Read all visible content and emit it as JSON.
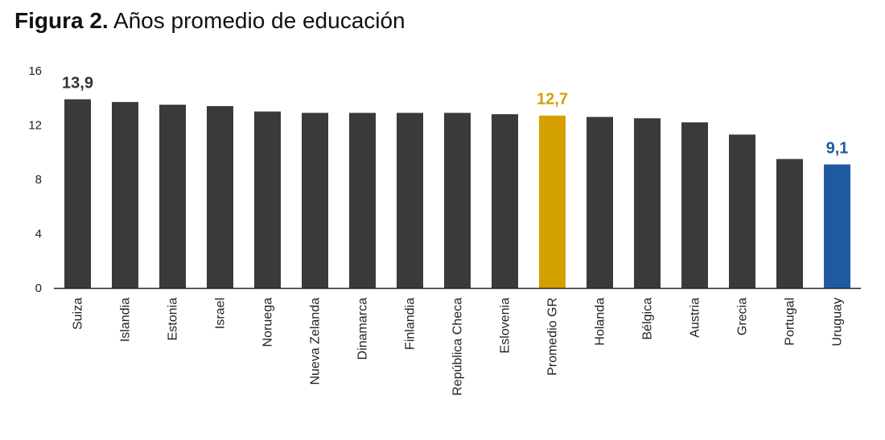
{
  "figure": {
    "number_label": "Figura 2.",
    "title_text": "Años promedio de educación"
  },
  "chart_data": {
    "type": "bar",
    "title": "Figura 2. Años promedio de educación",
    "categories": [
      "Suiza",
      "Islandia",
      "Estonia",
      "Israel",
      "Noruega",
      "Nueva Zelanda",
      "Dinamarca",
      "Finlandia",
      "República Checa",
      "Eslovenia",
      "Promedio GR",
      "Holanda",
      "Bélgica",
      "Austria",
      "Grecia",
      "Portugal",
      "Uruguay"
    ],
    "values": [
      13.9,
      13.7,
      13.5,
      13.4,
      13.0,
      12.9,
      12.9,
      12.9,
      12.9,
      12.8,
      12.7,
      12.6,
      12.5,
      12.2,
      11.3,
      9.5,
      9.1
    ],
    "data_labels": [
      {
        "category": "Suiza",
        "text": "13,9",
        "color": "#333333"
      },
      {
        "category": "Promedio GR",
        "text": "12,7",
        "color": "#d4a000"
      },
      {
        "category": "Uruguay",
        "text": "9,1",
        "color": "#1f5aa0"
      }
    ],
    "highlight_colors": {
      "Promedio GR": "#d4a000",
      "Uruguay": "#1f5aa0"
    },
    "bar_color": "#3a3a3a",
    "ylim": [
      0,
      16
    ],
    "yticks": [
      0,
      4,
      8,
      12,
      16
    ],
    "xlabel": "",
    "ylabel": "",
    "grid": false,
    "legend": "none"
  }
}
